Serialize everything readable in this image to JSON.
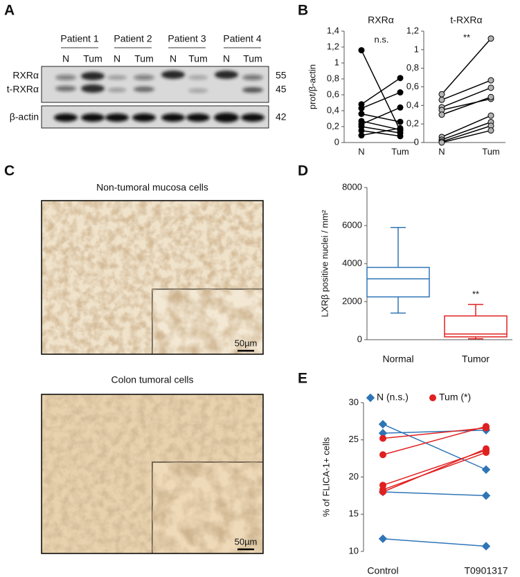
{
  "panel_a": {
    "label": "A",
    "patients": [
      "Patient 1",
      "Patient 2",
      "Patient 3",
      "Patient 4"
    ],
    "lanes": [
      "N",
      "Tum",
      "N",
      "Tum",
      "N",
      "Tum",
      "N",
      "Tum"
    ],
    "bands": [
      "RXRα",
      "t-RXRα",
      "β-actin"
    ],
    "sizes": [
      55,
      45,
      42
    ]
  },
  "panel_c": {
    "label": "C",
    "images": [
      {
        "title": "Non-tumoral mucosa cells",
        "scale": "50µm"
      },
      {
        "title": "Colon tumoral cells",
        "scale": "50µm"
      }
    ]
  },
  "chart_data": [
    {
      "type": "paired",
      "panel": "B",
      "title": "RXRα",
      "ylabel": "prot/β-actin",
      "annotation": "n.s.",
      "categories": [
        "N",
        "Tum"
      ],
      "ylim": [
        0,
        1.4
      ],
      "yticks": [
        0,
        {
          "value": 0.2,
          "label": "0,2"
        },
        {
          "value": 0.4,
          "label": "0,4"
        },
        {
          "value": 0.6,
          "label": "0,6"
        },
        {
          "value": 0.8,
          "label": "0,8"
        },
        1,
        {
          "value": 1.2,
          "label": "1,2"
        },
        {
          "value": 1.4,
          "label": "1,4"
        }
      ],
      "series": [
        {
          "color": "#000000",
          "marker": "circle",
          "marker_fill": "#000000",
          "values": [
            [
              1.16,
              0.15
            ],
            [
              0.48,
              0.81
            ],
            [
              0.43,
              0.63
            ],
            [
              0.36,
              0.26
            ],
            [
              0.27,
              0.16
            ],
            [
              0.23,
              0.44
            ],
            [
              0.2,
              0.12
            ],
            [
              0.15,
              0.08
            ],
            [
              0.09,
              0.18
            ]
          ]
        }
      ]
    },
    {
      "type": "paired",
      "title": "t-RXRα",
      "annotation": "**",
      "categories": [
        "N",
        "Tum"
      ],
      "ylim": [
        0,
        1.2
      ],
      "yticks": [
        0,
        {
          "value": 0.2,
          "label": "0,2"
        },
        {
          "value": 0.4,
          "label": "0,4"
        },
        {
          "value": 0.6,
          "label": "0,6"
        },
        {
          "value": 0.8,
          "label": "0,8"
        },
        1,
        {
          "value": 1.2,
          "label": "1,2"
        }
      ],
      "series": [
        {
          "color": "#000000",
          "marker": "circle",
          "marker_fill": "#b3b3b3",
          "values": [
            [
              0.52,
              1.12
            ],
            [
              0.46,
              0.67
            ],
            [
              0.38,
              0.59
            ],
            [
              0.35,
              0.47
            ],
            [
              0.3,
              0.49
            ],
            [
              0.06,
              0.29
            ],
            [
              0.03,
              0.22
            ],
            [
              0.01,
              0.18
            ],
            [
              0.0,
              0.13
            ]
          ]
        }
      ]
    },
    {
      "type": "box",
      "panel": "D",
      "ylabel": "LXRβ positive nuclei / mm²",
      "annotation": "**",
      "categories": [
        "Normal",
        "Tumor"
      ],
      "colors": [
        "#2e75b6",
        "#e02020"
      ],
      "ylim": [
        0,
        8000
      ],
      "yticks": [
        0,
        2000,
        4000,
        6000,
        8000
      ],
      "boxes": [
        {
          "min": 1400,
          "q1": 2250,
          "median": 3200,
          "q3": 3800,
          "max": 5900
        },
        {
          "min": 50,
          "q1": 150,
          "median": 300,
          "q3": 1250,
          "max": 1850
        }
      ]
    },
    {
      "type": "paired",
      "panel": "E",
      "ylabel": "% of FLICA-1+ cells",
      "categories": [
        "Control",
        "T0901317"
      ],
      "ylim": [
        10,
        30
      ],
      "yticks": [
        10,
        15,
        20,
        25,
        30
      ],
      "series": [
        {
          "name": "N (n.s.)",
          "color": "#2e75b6",
          "marker": "diamond",
          "marker_fill": "#2e75b6",
          "values": [
            [
              27.1,
              21.0
            ],
            [
              25.9,
              26.3
            ],
            [
              18.0,
              17.5
            ],
            [
              11.7,
              10.7
            ]
          ]
        },
        {
          "name": "Tum (*)",
          "color": "#e02020",
          "marker": "circle",
          "marker_fill": "#e02020",
          "values": [
            [
              25.2,
              26.6
            ],
            [
              23.0,
              26.8
            ],
            [
              18.9,
              23.6
            ],
            [
              18.3,
              23.3
            ],
            [
              18.0,
              23.8
            ]
          ]
        }
      ]
    }
  ]
}
